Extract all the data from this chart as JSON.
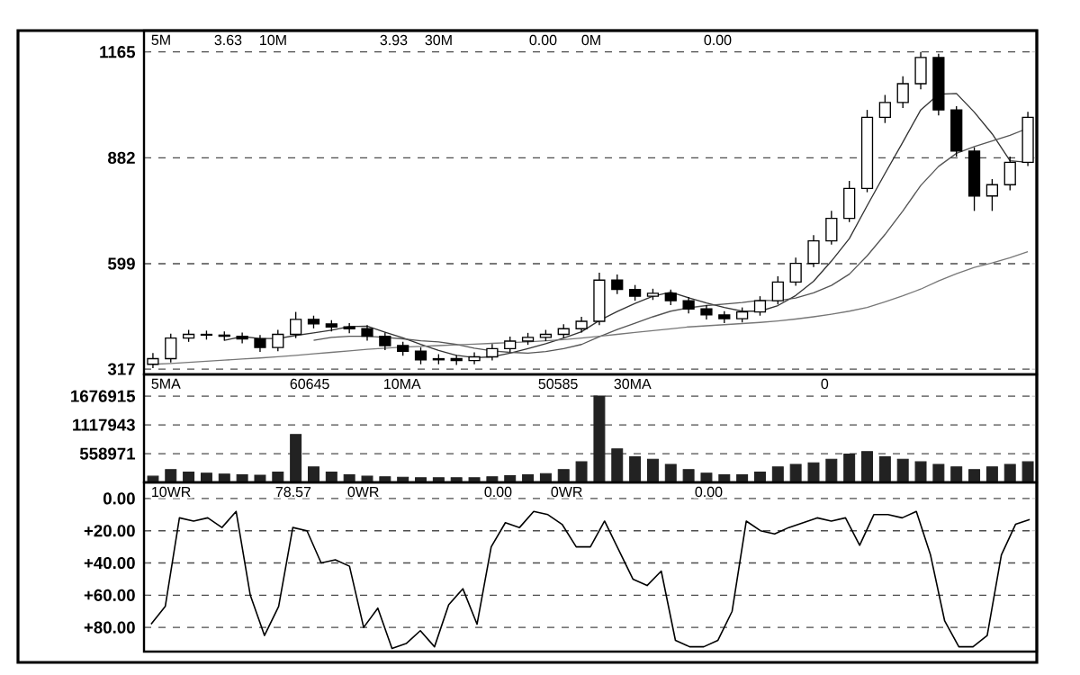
{
  "chart_data": [
    {
      "type": "candlestick",
      "categories": [
        null,
        null,
        null,
        null,
        null,
        null,
        null,
        null,
        null,
        null,
        null,
        null,
        null,
        null,
        null,
        null,
        null,
        null,
        null,
        null,
        null,
        null,
        null,
        null,
        null,
        null,
        null,
        null,
        null,
        null,
        null,
        null,
        null,
        null,
        null,
        null,
        null,
        null,
        null,
        null,
        null,
        null,
        null,
        null,
        null,
        null,
        null,
        null,
        null,
        null
      ],
      "ohlc": [
        [
          330,
          360,
          320,
          345
        ],
        [
          345,
          412,
          335,
          400
        ],
        [
          400,
          422,
          390,
          410
        ],
        [
          410,
          420,
          396,
          408
        ],
        [
          408,
          418,
          393,
          405
        ],
        [
          405,
          415,
          386,
          398
        ],
        [
          398,
          408,
          363,
          375
        ],
        [
          375,
          422,
          365,
          410
        ],
        [
          410,
          470,
          400,
          450
        ],
        [
          450,
          460,
          426,
          438
        ],
        [
          438,
          448,
          418,
          430
        ],
        [
          430,
          440,
          413,
          425
        ],
        [
          425,
          435,
          393,
          405
        ],
        [
          405,
          415,
          368,
          380
        ],
        [
          380,
          390,
          353,
          365
        ],
        [
          365,
          375,
          330,
          342
        ],
        [
          342,
          357,
          330,
          345
        ],
        [
          345,
          355,
          328,
          340
        ],
        [
          340,
          362,
          330,
          350
        ],
        [
          350,
          384,
          340,
          372
        ],
        [
          372,
          404,
          362,
          392
        ],
        [
          392,
          414,
          382,
          402
        ],
        [
          402,
          422,
          392,
          410
        ],
        [
          410,
          437,
          400,
          425
        ],
        [
          425,
          457,
          415,
          445
        ],
        [
          445,
          575,
          435,
          555
        ],
        [
          555,
          570,
          518,
          530
        ],
        [
          530,
          542,
          500,
          512
        ],
        [
          512,
          532,
          502,
          520
        ],
        [
          520,
          530,
          488,
          500
        ],
        [
          500,
          510,
          466,
          478
        ],
        [
          478,
          488,
          450,
          462
        ],
        [
          462,
          472,
          440,
          452
        ],
        [
          452,
          482,
          442,
          470
        ],
        [
          470,
          512,
          460,
          500
        ],
        [
          500,
          565,
          490,
          550
        ],
        [
          550,
          615,
          540,
          600
        ],
        [
          600,
          675,
          590,
          660
        ],
        [
          660,
          740,
          650,
          720
        ],
        [
          720,
          820,
          710,
          800
        ],
        [
          800,
          1010,
          790,
          990
        ],
        [
          990,
          1050,
          975,
          1030
        ],
        [
          1030,
          1100,
          1015,
          1080
        ],
        [
          1080,
          1165,
          1065,
          1150
        ],
        [
          1150,
          1160,
          995,
          1010
        ],
        [
          1010,
          1020,
          885,
          900
        ],
        [
          900,
          910,
          740,
          780
        ],
        [
          780,
          825,
          740,
          810
        ],
        [
          810,
          885,
          795,
          870
        ],
        [
          870,
          1005,
          860,
          990
        ]
      ],
      "color": "#000000",
      "series": [
        {
          "type": "line",
          "color": "#333333",
          "values": [
            null,
            null,
            null,
            null,
            394,
            404,
            399,
            399,
            407,
            414,
            421,
            431,
            432,
            416,
            401,
            383,
            367,
            354,
            348,
            350,
            360,
            372,
            385,
            400,
            417,
            447,
            471,
            493,
            512,
            523,
            508,
            494,
            482,
            472,
            472,
            487,
            514,
            552,
            606,
            666,
            754,
            840,
            924,
            1010,
            1052,
            1054,
            1004,
            946,
            874,
            870
          ]
        },
        {
          "type": "line",
          "color": "#555555",
          "values": [
            null,
            null,
            null,
            null,
            null,
            null,
            null,
            null,
            null,
            394,
            402,
            405,
            405,
            402,
            398,
            393,
            390,
            383,
            373,
            366,
            362,
            360,
            364,
            372,
            383,
            404,
            423,
            440,
            457,
            472,
            481,
            487,
            491,
            495,
            501,
            500,
            507,
            521,
            541,
            571,
            620,
            677,
            740,
            808,
            859,
            894,
            912,
            927,
            942,
            961
          ]
        },
        {
          "type": "line",
          "color": "#777777",
          "values": [
            330,
            332,
            335,
            338,
            341,
            344,
            347,
            350,
            354,
            358,
            362,
            366,
            370,
            373,
            376,
            378,
            380,
            382,
            384,
            386,
            388,
            390,
            393,
            396,
            400,
            405,
            410,
            415,
            420,
            425,
            430,
            433,
            436,
            439,
            442,
            446,
            451,
            457,
            464,
            472,
            482,
            497,
            513,
            531,
            553,
            572,
            589,
            601,
            615,
            631
          ]
        }
      ],
      "ylim": [
        303,
        1222
      ],
      "yticks": [
        317,
        599,
        882,
        1165
      ],
      "grid": "y",
      "tick_labels": "y",
      "annotations": [
        "5M",
        "3.63",
        "10M",
        "3.93",
        "30M",
        "0.00",
        "0M",
        "0.00"
      ]
    },
    {
      "type": "bar",
      "categories": [
        null,
        null,
        null,
        null,
        null,
        null,
        null,
        null,
        null,
        null,
        null,
        null,
        null,
        null,
        null,
        null,
        null,
        null,
        null,
        null,
        null,
        null,
        null,
        null,
        null,
        null,
        null,
        null,
        null,
        null,
        null,
        null,
        null,
        null,
        null,
        null,
        null,
        null,
        null,
        null,
        null,
        null,
        null,
        null,
        null,
        null,
        null,
        null,
        null,
        null
      ],
      "values": [
        120000,
        250000,
        200000,
        180000,
        160000,
        150000,
        140000,
        200000,
        930000,
        300000,
        200000,
        150000,
        120000,
        110000,
        100000,
        90000,
        90000,
        90000,
        90000,
        110000,
        130000,
        150000,
        170000,
        250000,
        400000,
        1680000,
        650000,
        500000,
        450000,
        350000,
        250000,
        180000,
        150000,
        150000,
        200000,
        300000,
        350000,
        380000,
        450000,
        550000,
        600000,
        500000,
        450000,
        400000,
        350000,
        300000,
        250000,
        300000,
        350000,
        400000
      ],
      "color": "#222222",
      "ylim": [
        0,
        2100000
      ],
      "yticks": [
        558971,
        1117943,
        1676915
      ],
      "grid": "y",
      "tick_labels": "y",
      "annotations": [
        "5MA",
        "60645",
        "10MA",
        "50585",
        "30MA",
        "0"
      ]
    },
    {
      "type": "line",
      "categories": [
        null,
        null,
        null,
        null,
        null,
        null,
        null,
        null,
        null,
        null,
        null,
        null,
        null,
        null,
        null,
        null,
        null,
        null,
        null,
        null,
        null,
        null,
        null,
        null,
        null,
        null,
        null,
        null,
        null,
        null,
        null,
        null,
        null,
        null,
        null,
        null,
        null,
        null,
        null,
        null,
        null,
        null,
        null,
        null,
        null,
        null,
        null,
        null,
        null,
        null,
        null,
        null,
        null,
        null,
        null,
        null,
        null,
        null,
        null,
        null,
        null,
        null,
        null
      ],
      "values": [
        78,
        67,
        12,
        14,
        12,
        18,
        8,
        60,
        85,
        67,
        18,
        20,
        40,
        38,
        42,
        80,
        68,
        93,
        90,
        82,
        92,
        66,
        56,
        78,
        30,
        15,
        18,
        8,
        10,
        16,
        30,
        30,
        14,
        32,
        50,
        54,
        45,
        88,
        92,
        92,
        88,
        70,
        14,
        20,
        22,
        18,
        15,
        12,
        14,
        12,
        29,
        10,
        10,
        12,
        8,
        35,
        76,
        92,
        92,
        85,
        35,
        16,
        13
      ],
      "color": "#000000",
      "ylim": [
        95,
        -10
      ],
      "yticks": [
        {
          "value": 0,
          "label": "0.00"
        },
        {
          "value": 20,
          "label": "+20.00"
        },
        {
          "value": 40,
          "label": "+40.00"
        },
        {
          "value": 60,
          "label": "+60.00"
        },
        {
          "value": 80,
          "label": "+80.00"
        }
      ],
      "grid": "y",
      "tick_labels": "y",
      "annotations": [
        "10WR",
        "78.57",
        "0WR",
        "0.00",
        "0WR",
        "0.00"
      ]
    }
  ]
}
